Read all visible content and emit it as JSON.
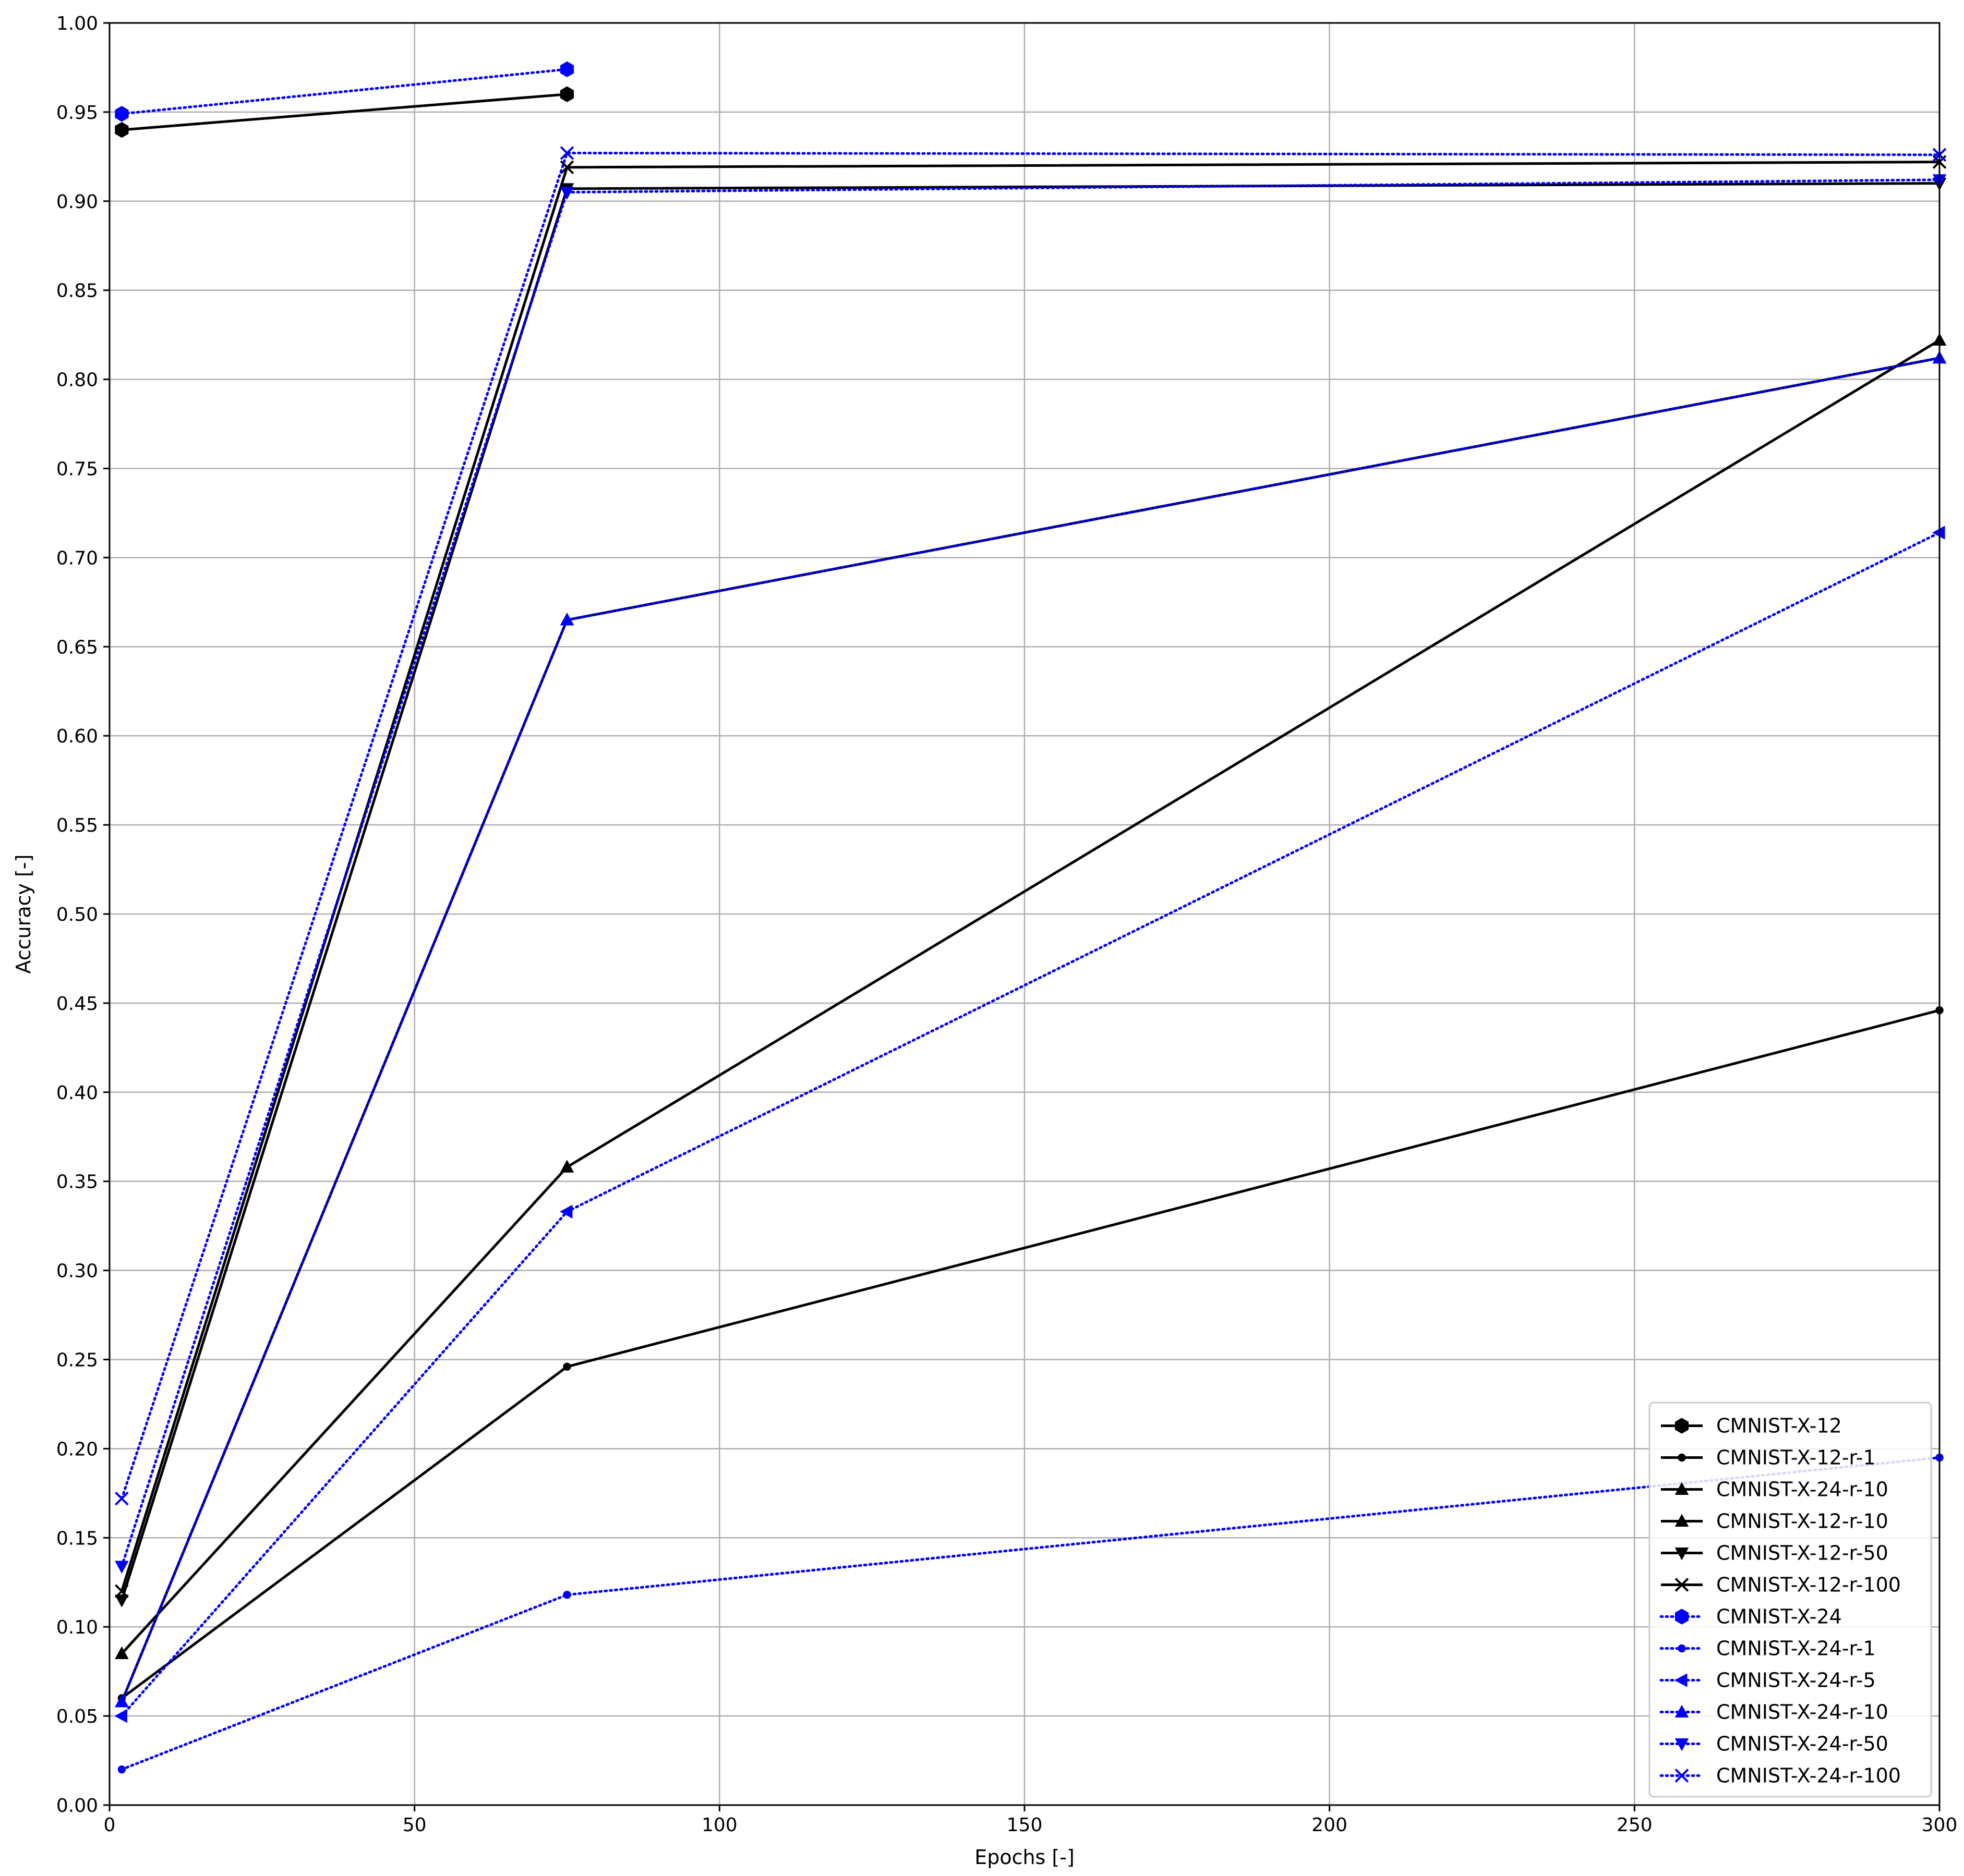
{
  "chart_data": {
    "type": "line",
    "title": "",
    "xlabel": "Epochs [-]",
    "ylabel": "Accuracy [-]",
    "xlim": [
      0,
      300
    ],
    "ylim": [
      0.0,
      1.0
    ],
    "xticks": [
      0,
      50,
      100,
      150,
      200,
      250,
      300
    ],
    "yticks": [
      0.0,
      0.05,
      0.1,
      0.15,
      0.2,
      0.25,
      0.3,
      0.35,
      0.4,
      0.45,
      0.5,
      0.55,
      0.6,
      0.65,
      0.7,
      0.75,
      0.8,
      0.85,
      0.9,
      0.95,
      1.0
    ],
    "grid": true,
    "legend_position": "lower-right",
    "series": [
      {
        "name": "CMNIST-X-12",
        "color": "#000000",
        "linestyle": "solid",
        "marker": "hexagon",
        "x": [
          2,
          75
        ],
        "y": [
          0.94,
          0.96
        ]
      },
      {
        "name": "CMNIST-X-12-r-1",
        "color": "#000000",
        "linestyle": "solid",
        "marker": "point",
        "x": [
          2,
          75,
          300
        ],
        "y": [
          0.06,
          0.246,
          0.446
        ]
      },
      {
        "name": "CMNIST-X-24-r-10",
        "color": "#000000",
        "linestyle": "solid",
        "marker": "triangle-up",
        "x": [
          2,
          75,
          300
        ],
        "y": [
          0.085,
          0.358,
          0.822
        ]
      },
      {
        "name": "CMNIST-X-12-r-10",
        "color": "#000000",
        "linestyle": "solid",
        "marker": "triangle-up",
        "x": [
          2,
          75,
          300
        ],
        "y": [
          0.058,
          0.665,
          0.812
        ]
      },
      {
        "name": "CMNIST-X-12-r-50",
        "color": "#000000",
        "linestyle": "solid",
        "marker": "triangle-down",
        "x": [
          2,
          75,
          300
        ],
        "y": [
          0.115,
          0.907,
          0.91
        ]
      },
      {
        "name": "CMNIST-X-12-r-100",
        "color": "#000000",
        "linestyle": "solid",
        "marker": "x",
        "x": [
          2,
          75,
          300
        ],
        "y": [
          0.12,
          0.919,
          0.922
        ]
      },
      {
        "name": "CMNIST-X-24",
        "color": "#0000ff",
        "linestyle": "dotted",
        "marker": "hexagon",
        "x": [
          2,
          75
        ],
        "y": [
          0.949,
          0.974
        ]
      },
      {
        "name": "CMNIST-X-24-r-1",
        "color": "#0000ff",
        "linestyle": "dotted",
        "marker": "point",
        "x": [
          2,
          75,
          300
        ],
        "y": [
          0.02,
          0.118,
          0.195
        ]
      },
      {
        "name": "CMNIST-X-24-r-5",
        "color": "#0000ff",
        "linestyle": "dotted",
        "marker": "triangle-left",
        "x": [
          2,
          75,
          300
        ],
        "y": [
          0.05,
          0.333,
          0.714
        ]
      },
      {
        "name": "CMNIST-X-24-r-10",
        "color": "#0000ff",
        "linestyle": "dotted",
        "marker": "triangle-up",
        "x": [
          2,
          75,
          300
        ],
        "y": [
          0.058,
          0.665,
          0.812
        ]
      },
      {
        "name": "CMNIST-X-24-r-50",
        "color": "#0000ff",
        "linestyle": "dotted",
        "marker": "triangle-down",
        "x": [
          2,
          75,
          300
        ],
        "y": [
          0.134,
          0.905,
          0.912
        ]
      },
      {
        "name": "CMNIST-X-24-r-100",
        "color": "#0000ff",
        "linestyle": "dotted",
        "marker": "x",
        "x": [
          2,
          75,
          300
        ],
        "y": [
          0.172,
          0.927,
          0.926
        ]
      }
    ]
  }
}
